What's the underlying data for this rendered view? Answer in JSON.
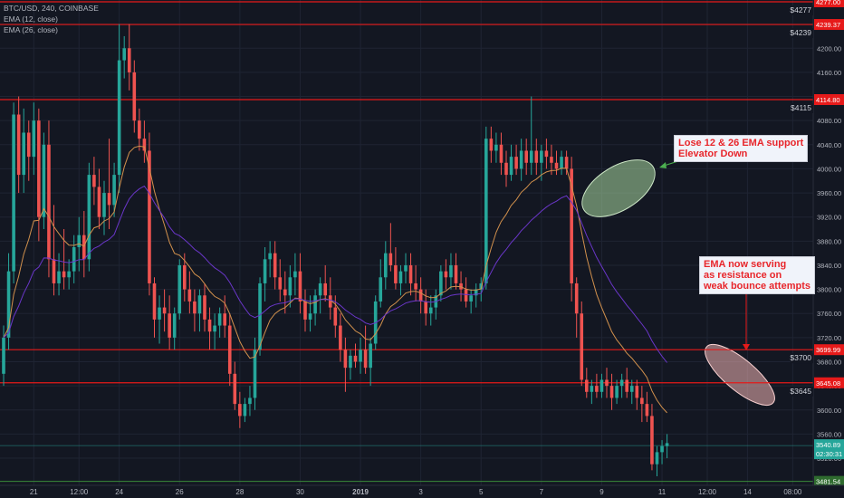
{
  "header": {
    "symbol_line": "BTC/USD, 240, COINBASE",
    "ema12_label": "EMA (12, close)",
    "ema26_label": "EMA (26, close)"
  },
  "colors": {
    "background": "#131722",
    "grid": "#1f2433",
    "up": "#26a69a",
    "down": "#ef5350",
    "ema12": "#d2914d",
    "ema26": "#6a36c9",
    "hline": "#e61a1a",
    "support": "#3a8a3a",
    "ellipse_green": "#a9d9a0",
    "ellipse_red": "#f2b4b4",
    "axis_text": "#b2b5be"
  },
  "annotations": {
    "first": [
      "Lose 12 & 26 EMA support",
      "Elevator Down"
    ],
    "second": [
      "EMA now serving",
      "as resistance on",
      "weak bounce attempts"
    ]
  },
  "chart_data": {
    "type": "candlestick",
    "title": "BTC/USD, 240, COINBASE",
    "ylim": [
      3475,
      4280
    ],
    "y_ticks": [
      3520,
      3560,
      3600,
      3640,
      3680,
      3720,
      3760,
      3800,
      3840,
      3880,
      3920,
      3960,
      4000,
      4040,
      4080,
      4120,
      4160,
      4200,
      4240
    ],
    "x_ticks": [
      {
        "label": "21",
        "bar": 6
      },
      {
        "label": "12:00",
        "bar": 15
      },
      {
        "label": "24",
        "bar": 23
      },
      {
        "label": "26",
        "bar": 35
      },
      {
        "label": "28",
        "bar": 47
      },
      {
        "label": "30",
        "bar": 59
      },
      {
        "label": "2019",
        "bar": 71
      },
      {
        "label": "3",
        "bar": 83
      },
      {
        "label": "5",
        "bar": 95
      },
      {
        "label": "7",
        "bar": 107
      },
      {
        "label": "9",
        "bar": 119
      },
      {
        "label": "11",
        "bar": 131
      },
      {
        "label": "12:00",
        "bar": 140
      },
      {
        "label": "14",
        "bar": 148
      },
      {
        "label": "08:00",
        "bar": 157
      }
    ],
    "horizontal_levels": [
      {
        "value": 4277.0,
        "tag": "4277.00",
        "label": "$4277"
      },
      {
        "value": 4239.37,
        "tag": "4239.37",
        "label": "$4239"
      },
      {
        "value": 4114.8,
        "tag": "4114.80",
        "label": "$4115"
      },
      {
        "value": 3699.99,
        "tag": "3699.99",
        "label": "$3700"
      },
      {
        "value": 3645.08,
        "tag": "3645.08",
        "label": "$3645"
      }
    ],
    "support_level": {
      "value": 3481.54,
      "tag": "3481.54",
      "label": "$3482"
    },
    "last_price": {
      "value": 3540.89,
      "tag": "3540.89",
      "countdown": "02:30:31"
    },
    "candles": [
      [
        3660,
        3740,
        3640,
        3720
      ],
      [
        3720,
        3860,
        3700,
        3830
      ],
      [
        3830,
        4110,
        3810,
        4090
      ],
      [
        4090,
        4120,
        3960,
        3990
      ],
      [
        3990,
        4100,
        3960,
        4060
      ],
      [
        4060,
        4080,
        3980,
        4020
      ],
      [
        4020,
        4110,
        3990,
        4080
      ],
      [
        4080,
        4100,
        3880,
        3920
      ],
      [
        3920,
        4060,
        3900,
        4040
      ],
      [
        4040,
        4080,
        3820,
        3850
      ],
      [
        3850,
        3940,
        3790,
        3810
      ],
      [
        3810,
        3860,
        3790,
        3830
      ],
      [
        3830,
        3900,
        3800,
        3820
      ],
      [
        3820,
        3850,
        3800,
        3830
      ],
      [
        3830,
        3890,
        3810,
        3870
      ],
      [
        3870,
        3920,
        3830,
        3890
      ],
      [
        3890,
        3930,
        3820,
        3850
      ],
      [
        3850,
        4010,
        3830,
        3990
      ],
      [
        3990,
        4020,
        3940,
        3970
      ],
      [
        3970,
        4000,
        3900,
        3920
      ],
      [
        3920,
        3980,
        3890,
        3960
      ],
      [
        3960,
        4050,
        3900,
        3940
      ],
      [
        3940,
        4010,
        3920,
        3990
      ],
      [
        3990,
        4240,
        3960,
        4180
      ],
      [
        4180,
        4220,
        4150,
        4200
      ],
      [
        4200,
        4240,
        4130,
        4160
      ],
      [
        4160,
        4180,
        4060,
        4080
      ],
      [
        4080,
        4100,
        4030,
        4050
      ],
      [
        4050,
        4080,
        4010,
        4030
      ],
      [
        4030,
        4060,
        3790,
        3810
      ],
      [
        3810,
        3820,
        3720,
        3750
      ],
      [
        3750,
        3790,
        3710,
        3770
      ],
      [
        3770,
        3800,
        3730,
        3760
      ],
      [
        3760,
        3790,
        3700,
        3720
      ],
      [
        3720,
        3770,
        3700,
        3760
      ],
      [
        3760,
        3850,
        3750,
        3840
      ],
      [
        3840,
        3860,
        3780,
        3800
      ],
      [
        3800,
        3830,
        3760,
        3780
      ],
      [
        3780,
        3800,
        3730,
        3760
      ],
      [
        3760,
        3800,
        3730,
        3790
      ],
      [
        3790,
        3810,
        3730,
        3750
      ],
      [
        3750,
        3770,
        3700,
        3730
      ],
      [
        3730,
        3760,
        3700,
        3740
      ],
      [
        3740,
        3770,
        3720,
        3760
      ],
      [
        3760,
        3790,
        3720,
        3740
      ],
      [
        3740,
        3760,
        3640,
        3660
      ],
      [
        3660,
        3680,
        3600,
        3610
      ],
      [
        3610,
        3630,
        3570,
        3590
      ],
      [
        3590,
        3620,
        3580,
        3610
      ],
      [
        3610,
        3640,
        3590,
        3620
      ],
      [
        3620,
        3720,
        3600,
        3700
      ],
      [
        3700,
        3820,
        3690,
        3810
      ],
      [
        3810,
        3870,
        3780,
        3850
      ],
      [
        3850,
        3880,
        3820,
        3860
      ],
      [
        3860,
        3880,
        3800,
        3820
      ],
      [
        3820,
        3850,
        3780,
        3800
      ],
      [
        3800,
        3830,
        3760,
        3790
      ],
      [
        3790,
        3840,
        3770,
        3820
      ],
      [
        3820,
        3860,
        3790,
        3830
      ],
      [
        3830,
        3860,
        3760,
        3780
      ],
      [
        3780,
        3800,
        3730,
        3750
      ],
      [
        3750,
        3790,
        3730,
        3760
      ],
      [
        3760,
        3800,
        3740,
        3790
      ],
      [
        3790,
        3820,
        3760,
        3810
      ],
      [
        3810,
        3840,
        3780,
        3790
      ],
      [
        3790,
        3820,
        3750,
        3770
      ],
      [
        3770,
        3790,
        3720,
        3740
      ],
      [
        3740,
        3760,
        3680,
        3700
      ],
      [
        3700,
        3720,
        3630,
        3670
      ],
      [
        3670,
        3700,
        3650,
        3690
      ],
      [
        3690,
        3710,
        3670,
        3680
      ],
      [
        3680,
        3720,
        3660,
        3700
      ],
      [
        3700,
        3740,
        3660,
        3670
      ],
      [
        3670,
        3720,
        3640,
        3710
      ],
      [
        3710,
        3790,
        3700,
        3780
      ],
      [
        3780,
        3850,
        3770,
        3820
      ],
      [
        3820,
        3880,
        3800,
        3860
      ],
      [
        3860,
        3910,
        3830,
        3840
      ],
      [
        3840,
        3870,
        3800,
        3810
      ],
      [
        3810,
        3840,
        3790,
        3830
      ],
      [
        3830,
        3860,
        3810,
        3840
      ],
      [
        3840,
        3860,
        3790,
        3810
      ],
      [
        3810,
        3840,
        3780,
        3800
      ],
      [
        3800,
        3820,
        3760,
        3780
      ],
      [
        3780,
        3800,
        3740,
        3760
      ],
      [
        3760,
        3790,
        3740,
        3770
      ],
      [
        3770,
        3800,
        3750,
        3790
      ],
      [
        3790,
        3840,
        3780,
        3830
      ],
      [
        3830,
        3850,
        3800,
        3820
      ],
      [
        3820,
        3860,
        3800,
        3840
      ],
      [
        3840,
        3860,
        3800,
        3810
      ],
      [
        3810,
        3830,
        3780,
        3800
      ],
      [
        3800,
        3820,
        3770,
        3780
      ],
      [
        3780,
        3800,
        3760,
        3790
      ],
      [
        3790,
        3810,
        3770,
        3800
      ],
      [
        3800,
        3820,
        3780,
        3810
      ],
      [
        3810,
        4070,
        3800,
        4050
      ],
      [
        4050,
        4070,
        4010,
        4030
      ],
      [
        4030,
        4060,
        4010,
        4040
      ],
      [
        4040,
        4060,
        3990,
        4010
      ],
      [
        4010,
        4030,
        3970,
        3990
      ],
      [
        3990,
        4040,
        3980,
        4020
      ],
      [
        4020,
        4040,
        3990,
        4000
      ],
      [
        4000,
        4050,
        3980,
        4030
      ],
      [
        4030,
        4050,
        3990,
        4010
      ],
      [
        4010,
        4120,
        3990,
        4030
      ],
      [
        4030,
        4050,
        3990,
        4010
      ],
      [
        4010,
        4040,
        3980,
        4030
      ],
      [
        4030,
        4050,
        4000,
        4020
      ],
      [
        4020,
        4040,
        3990,
        4010
      ],
      [
        4010,
        4030,
        3990,
        4000
      ],
      [
        4000,
        4030,
        3990,
        4020
      ],
      [
        4020,
        4030,
        3990,
        4000
      ],
      [
        4000,
        4020,
        3780,
        3810
      ],
      [
        3810,
        3820,
        3720,
        3760
      ],
      [
        3760,
        3780,
        3640,
        3650
      ],
      [
        3650,
        3670,
        3620,
        3630
      ],
      [
        3630,
        3650,
        3610,
        3640
      ],
      [
        3640,
        3660,
        3620,
        3630
      ],
      [
        3630,
        3660,
        3620,
        3650
      ],
      [
        3650,
        3670,
        3620,
        3640
      ],
      [
        3640,
        3660,
        3600,
        3620
      ],
      [
        3620,
        3650,
        3610,
        3640
      ],
      [
        3640,
        3660,
        3620,
        3650
      ],
      [
        3650,
        3670,
        3620,
        3630
      ],
      [
        3630,
        3650,
        3610,
        3640
      ],
      [
        3640,
        3650,
        3600,
        3620
      ],
      [
        3620,
        3640,
        3580,
        3610
      ],
      [
        3610,
        3630,
        3580,
        3590
      ],
      [
        3590,
        3610,
        3500,
        3510
      ],
      [
        3510,
        3540,
        3490,
        3530
      ],
      [
        3530,
        3550,
        3510,
        3540
      ],
      [
        3540,
        3560,
        3520,
        3545
      ]
    ]
  }
}
